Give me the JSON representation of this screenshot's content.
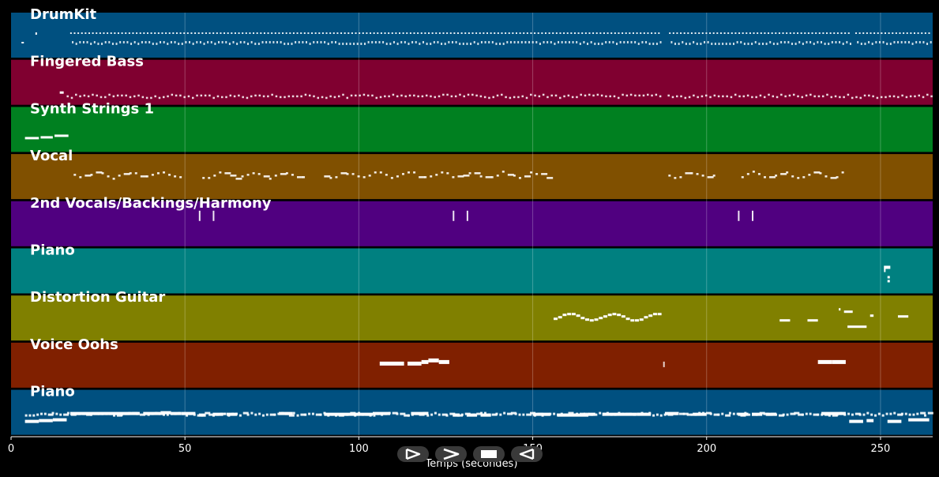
{
  "axis": {
    "label": "Temps (secondes)",
    "range": [
      0,
      265
    ],
    "ticks": [
      0,
      50,
      100,
      150,
      200,
      250
    ]
  },
  "tracks": [
    {
      "name": "DrumKit",
      "color": "#005080",
      "texture": "drums"
    },
    {
      "name": "Fingered Bass",
      "color": "#800030",
      "texture": "bass"
    },
    {
      "name": "Synth Strings 1",
      "color": "#008020",
      "texture": "strings"
    },
    {
      "name": "Vocal",
      "color": "#805000",
      "texture": "vocal"
    },
    {
      "name": "2nd Vocals/Backings/Harmony",
      "color": "#500080",
      "texture": "vocals2"
    },
    {
      "name": "Piano",
      "color": "#008080",
      "texture": "piano1"
    },
    {
      "name": "Distortion Guitar",
      "color": "#808000",
      "texture": "guitar"
    },
    {
      "name": "Voice Oohs",
      "color": "#802000",
      "texture": "oohs"
    },
    {
      "name": "Piano",
      "color": "#005080",
      "texture": "piano2"
    }
  ],
  "controls": [
    {
      "id": "btn-play",
      "icon": "play-icon"
    },
    {
      "id": "btn-ffwd",
      "icon": "fast-forward-icon"
    },
    {
      "id": "btn-stop",
      "icon": "stop-icon"
    },
    {
      "id": "btn-rew",
      "icon": "rewind-icon"
    }
  ],
  "colors": {
    "background": "#000000",
    "note": "#ffffff",
    "grid": "#ffffff",
    "control": "#3a3a3a"
  }
}
